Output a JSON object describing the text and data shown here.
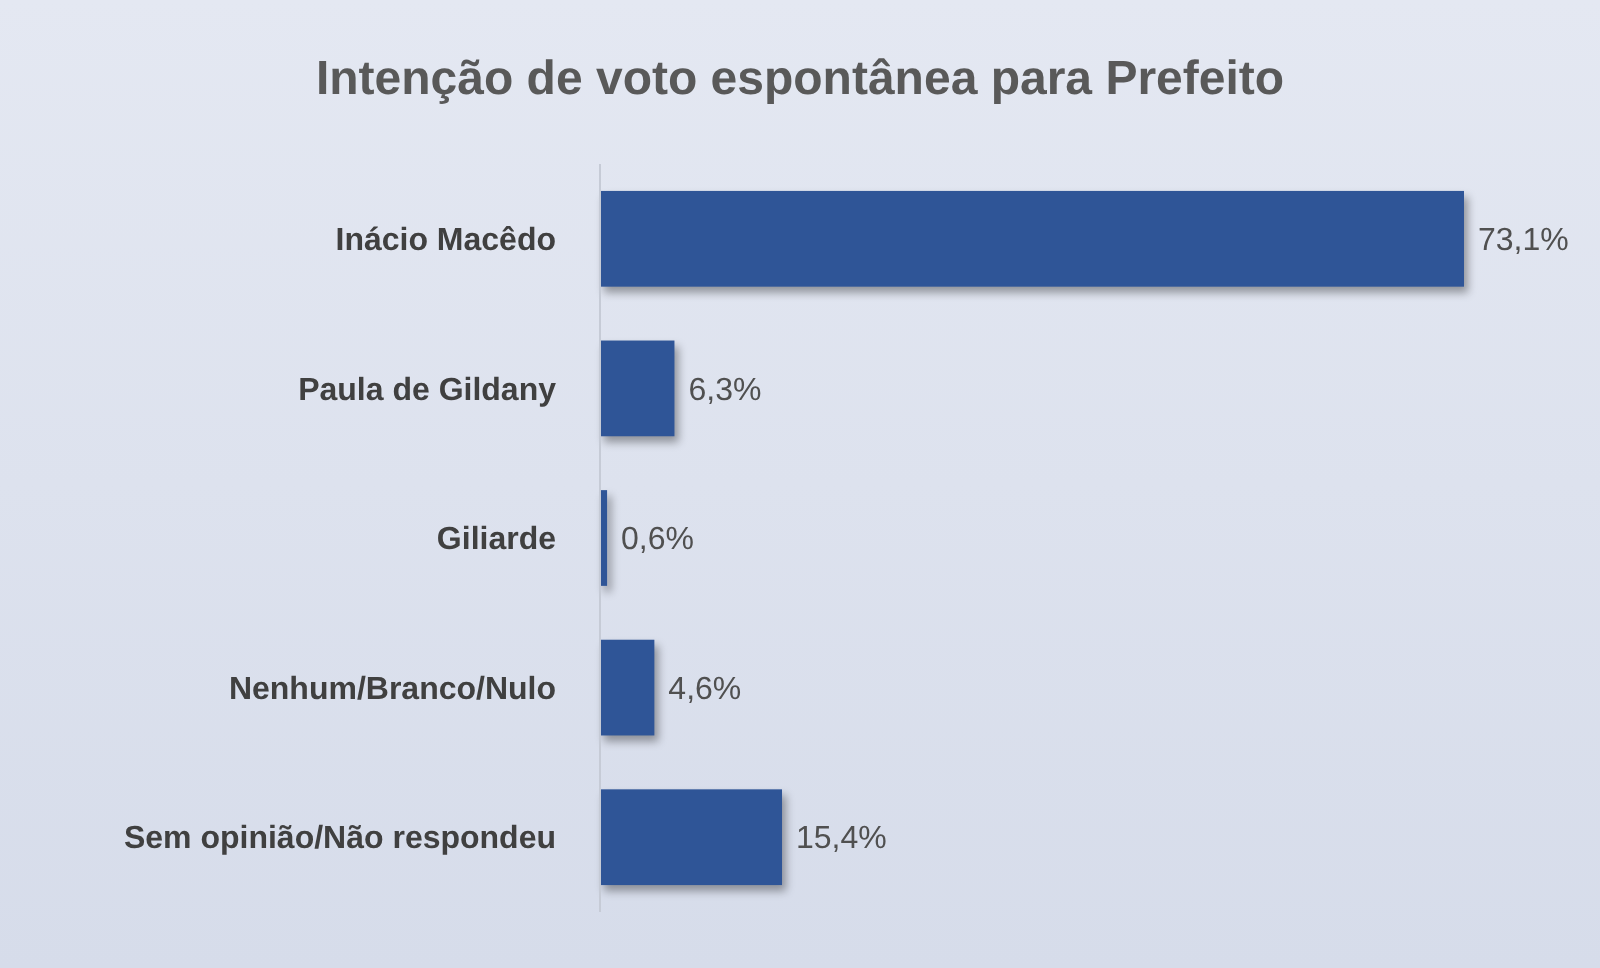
{
  "chart_data": {
    "type": "bar",
    "orientation": "horizontal",
    "title": "Intenção de voto espontânea para Prefeito",
    "categories": [
      "Inácio Macêdo",
      "Paula de Gildany",
      "Giliarde",
      "Nenhum/Branco/Nulo",
      "Sem opinião/Não respondeu"
    ],
    "values": [
      73.1,
      6.3,
      0.6,
      4.6,
      15.4
    ],
    "value_labels": [
      "73,1%",
      "6,3%",
      "0,6%",
      "4,6%",
      "15,4%"
    ],
    "color": "#2f5597"
  }
}
